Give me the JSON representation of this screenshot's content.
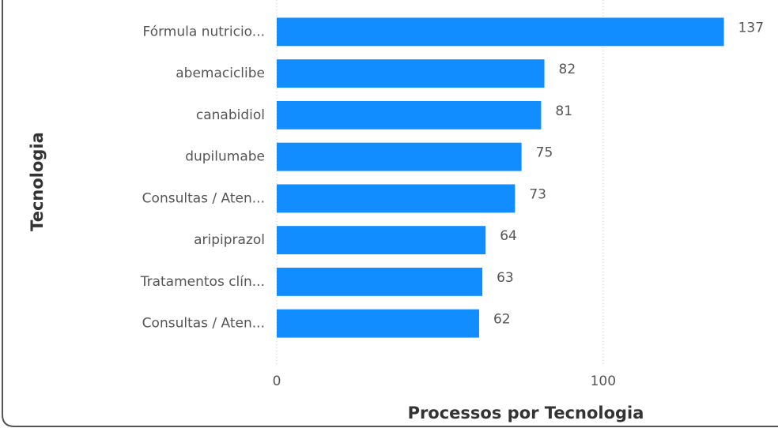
{
  "chart_data": {
    "type": "bar",
    "orientation": "horizontal",
    "x_label": "Processos por Tecnologia",
    "y_label": "Tecnologia",
    "categories": [
      "Fórmula nutricio...",
      "abemaciclibe",
      "canabidiol",
      "dupilumabe",
      "Consultas / Aten...",
      "aripiprazol",
      "Tratamentos clín...",
      "Consultas / Aten..."
    ],
    "values": [
      137,
      82,
      81,
      75,
      73,
      64,
      63,
      62
    ],
    "color": "#118dff",
    "xlim": [
      0,
      148
    ],
    "xticks": [
      0,
      100
    ],
    "grid": true
  }
}
